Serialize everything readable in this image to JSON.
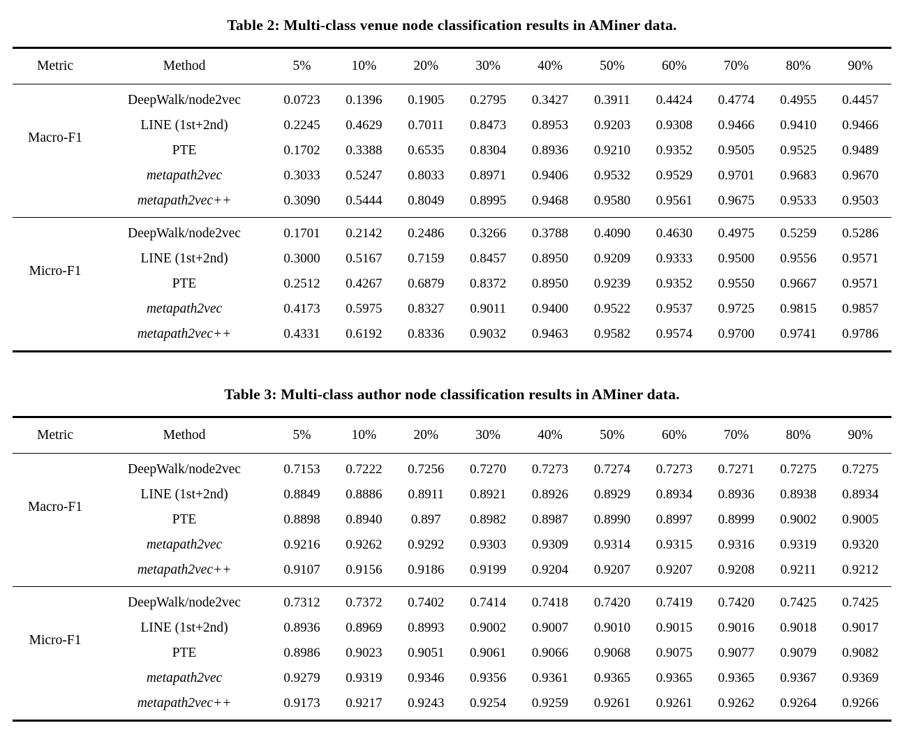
{
  "page": {
    "background_color": "#ffffff",
    "text_color": "#000000"
  },
  "tables": [
    {
      "title": "Table 2: Multi-class venue node classification results in AMiner data.",
      "columns": [
        "Metric",
        "Method",
        "5%",
        "10%",
        "20%",
        "30%",
        "40%",
        "50%",
        "60%",
        "70%",
        "80%",
        "90%"
      ],
      "sections": [
        {
          "metric": "Macro-F1",
          "rows": [
            {
              "method": "DeepWalk/node2vec",
              "italic": false,
              "values": [
                "0.0723",
                "0.1396",
                "0.1905",
                "0.2795",
                "0.3427",
                "0.3911",
                "0.4424",
                "0.4774",
                "0.4955",
                "0.4457"
              ]
            },
            {
              "method": "LINE (1st+2nd)",
              "italic": false,
              "values": [
                "0.2245",
                "0.4629",
                "0.7011",
                "0.8473",
                "0.8953",
                "0.9203",
                "0.9308",
                "0.9466",
                "0.9410",
                "0.9466"
              ]
            },
            {
              "method": "PTE",
              "italic": false,
              "values": [
                "0.1702",
                "0.3388",
                "0.6535",
                "0.8304",
                "0.8936",
                "0.9210",
                "0.9352",
                "0.9505",
                "0.9525",
                "0.9489"
              ]
            },
            {
              "method": "metapath2vec",
              "italic": true,
              "values": [
                "0.3033",
                "0.5247",
                "0.8033",
                "0.8971",
                "0.9406",
                "0.9532",
                "0.9529",
                "0.9701",
                "0.9683",
                "0.9670"
              ]
            },
            {
              "method": "metapath2vec++",
              "italic": true,
              "values": [
                "0.3090",
                "0.5444",
                "0.8049",
                "0.8995",
                "0.9468",
                "0.9580",
                "0.9561",
                "0.9675",
                "0.9533",
                "0.9503"
              ]
            }
          ]
        },
        {
          "metric": "Micro-F1",
          "rows": [
            {
              "method": "DeepWalk/node2vec",
              "italic": false,
              "values": [
                "0.1701",
                "0.2142",
                "0.2486",
                "0.3266",
                "0.3788",
                "0.4090",
                "0.4630",
                "0.4975",
                "0.5259",
                "0.5286"
              ]
            },
            {
              "method": "LINE (1st+2nd)",
              "italic": false,
              "values": [
                "0.3000",
                "0.5167",
                "0.7159",
                "0.8457",
                "0.8950",
                "0.9209",
                "0.9333",
                "0.9500",
                "0.9556",
                "0.9571"
              ]
            },
            {
              "method": "PTE",
              "italic": false,
              "values": [
                "0.2512",
                "0.4267",
                "0.6879",
                "0.8372",
                "0.8950",
                "0.9239",
                "0.9352",
                "0.9550",
                "0.9667",
                "0.9571"
              ]
            },
            {
              "method": "metapath2vec",
              "italic": true,
              "values": [
                "0.4173",
                "0.5975",
                "0.8327",
                "0.9011",
                "0.9400",
                "0.9522",
                "0.9537",
                "0.9725",
                "0.9815",
                "0.9857"
              ]
            },
            {
              "method": "metapath2vec++",
              "italic": true,
              "values": [
                "0.4331",
                "0.6192",
                "0.8336",
                "0.9032",
                "0.9463",
                "0.9582",
                "0.9574",
                "0.9700",
                "0.9741",
                "0.9786"
              ]
            }
          ]
        }
      ]
    },
    {
      "title": "Table 3: Multi-class author node classification results in AMiner data.",
      "columns": [
        "Metric",
        "Method",
        "5%",
        "10%",
        "20%",
        "30%",
        "40%",
        "50%",
        "60%",
        "70%",
        "80%",
        "90%"
      ],
      "sections": [
        {
          "metric": "Macro-F1",
          "rows": [
            {
              "method": "DeepWalk/node2vec",
              "italic": false,
              "values": [
                "0.7153",
                "0.7222",
                "0.7256",
                "0.7270",
                "0.7273",
                "0.7274",
                "0.7273",
                "0.7271",
                "0.7275",
                "0.7275"
              ]
            },
            {
              "method": "LINE (1st+2nd)",
              "italic": false,
              "values": [
                "0.8849",
                "0.8886",
                "0.8911",
                "0.8921",
                "0.8926",
                "0.8929",
                "0.8934",
                "0.8936",
                "0.8938",
                "0.8934"
              ]
            },
            {
              "method": "PTE",
              "italic": false,
              "values": [
                "0.8898",
                "0.8940",
                "0.897",
                "0.8982",
                "0.8987",
                "0.8990",
                "0.8997",
                "0.8999",
                "0.9002",
                "0.9005"
              ]
            },
            {
              "method": "metapath2vec",
              "italic": true,
              "values": [
                "0.9216",
                "0.9262",
                "0.9292",
                "0.9303",
                "0.9309",
                "0.9314",
                "0.9315",
                "0.9316",
                "0.9319",
                "0.9320"
              ]
            },
            {
              "method": "metapath2vec++",
              "italic": true,
              "values": [
                "0.9107",
                "0.9156",
                "0.9186",
                "0.9199",
                "0.9204",
                "0.9207",
                "0.9207",
                "0.9208",
                "0.9211",
                "0.9212"
              ]
            }
          ]
        },
        {
          "metric": "Micro-F1",
          "rows": [
            {
              "method": "DeepWalk/node2vec",
              "italic": false,
              "values": [
                "0.7312",
                "0.7372",
                "0.7402",
                "0.7414",
                "0.7418",
                "0.7420",
                "0.7419",
                "0.7420",
                "0.7425",
                "0.7425"
              ]
            },
            {
              "method": "LINE (1st+2nd)",
              "italic": false,
              "values": [
                "0.8936",
                "0.8969",
                "0.8993",
                "0.9002",
                "0.9007",
                "0.9010",
                "0.9015",
                "0.9016",
                "0.9018",
                "0.9017"
              ]
            },
            {
              "method": "PTE",
              "italic": false,
              "values": [
                "0.8986",
                "0.9023",
                "0.9051",
                "0.9061",
                "0.9066",
                "0.9068",
                "0.9075",
                "0.9077",
                "0.9079",
                "0.9082"
              ]
            },
            {
              "method": "metapath2vec",
              "italic": true,
              "values": [
                "0.9279",
                "0.9319",
                "0.9346",
                "0.9356",
                "0.9361",
                "0.9365",
                "0.9365",
                "0.9365",
                "0.9367",
                "0.9369"
              ]
            },
            {
              "method": "metapath2vec++",
              "italic": true,
              "values": [
                "0.9173",
                "0.9217",
                "0.9243",
                "0.9254",
                "0.9259",
                "0.9261",
                "0.9261",
                "0.9262",
                "0.9264",
                "0.9266"
              ]
            }
          ]
        }
      ]
    }
  ]
}
